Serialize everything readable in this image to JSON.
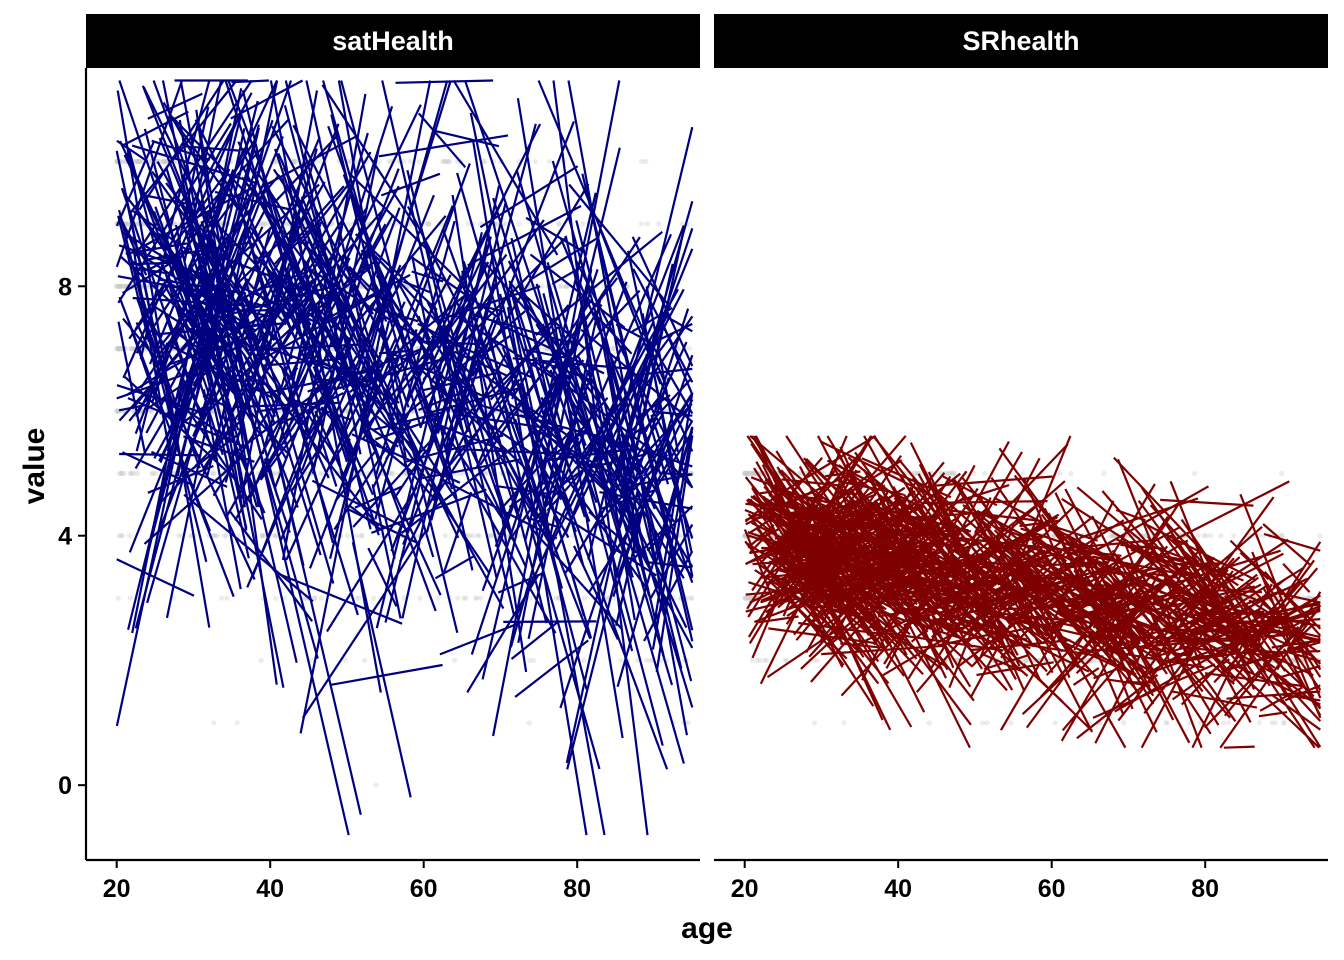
{
  "chart_data": {
    "type": "line",
    "title": "",
    "xlabel": "age",
    "ylabel": "value",
    "xlim": [
      16,
      96
    ],
    "ylim": [
      -1.2,
      11.5
    ],
    "x_ticks": [
      20,
      40,
      60,
      80
    ],
    "y_ticks": [
      0,
      4,
      8
    ],
    "x_tick_labels": [
      "20",
      "40",
      "60",
      "80"
    ],
    "y_tick_labels": [
      "0",
      "4",
      "8"
    ],
    "grid": false,
    "legend": "none",
    "description_of_marks": "Per-panel: faint grey jittered points at integer values plus hundreds of short per-person regression line segments (value vs age)",
    "panels": [
      {
        "name": "satHealth",
        "line_color": "#000080",
        "point_color": "#c8c8c8",
        "value_levels": [
          0,
          1,
          2,
          3,
          4,
          5,
          6,
          7,
          8,
          9,
          10
        ],
        "age_range": [
          20,
          95
        ],
        "segment_count": 700,
        "trend": {
          "intercept_age": 20,
          "intercept_value": 8.0,
          "slope_per_year": -0.038
        },
        "value_spread_sd": 1.6,
        "segment_clip": [
          -0.8,
          11.3
        ]
      },
      {
        "name": "SRhealth",
        "line_color": "#7f0000",
        "point_color": "#c8c8c8",
        "value_levels": [
          1,
          2,
          3,
          4,
          5
        ],
        "age_range": [
          20,
          95
        ],
        "segment_count": 900,
        "trend": {
          "intercept_age": 20,
          "intercept_value": 4.0,
          "slope_per_year": -0.022
        },
        "value_spread_sd": 0.6,
        "segment_clip": [
          0.6,
          5.6
        ]
      }
    ]
  }
}
